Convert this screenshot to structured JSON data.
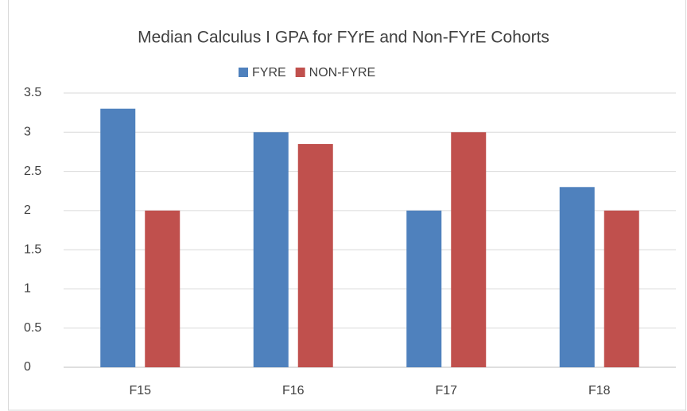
{
  "chart_data": {
    "type": "bar",
    "title": "Median Calculus I GPA for FYrE and Non-FYrE Cohorts",
    "categories": [
      "F15",
      "F16",
      "F17",
      "F18"
    ],
    "series": [
      {
        "name": "FYRE",
        "color": "#4f81bd",
        "values": [
          3.3,
          3,
          2,
          2.3
        ]
      },
      {
        "name": "NON-FYRE",
        "color": "#c0504d",
        "values": [
          2,
          2.85,
          3,
          2
        ]
      }
    ],
    "ylim": [
      0,
      3.5
    ],
    "yticks": [
      0,
      0.5,
      1,
      1.5,
      2,
      2.5,
      3,
      3.5
    ],
    "grid": true,
    "legend": "top"
  }
}
